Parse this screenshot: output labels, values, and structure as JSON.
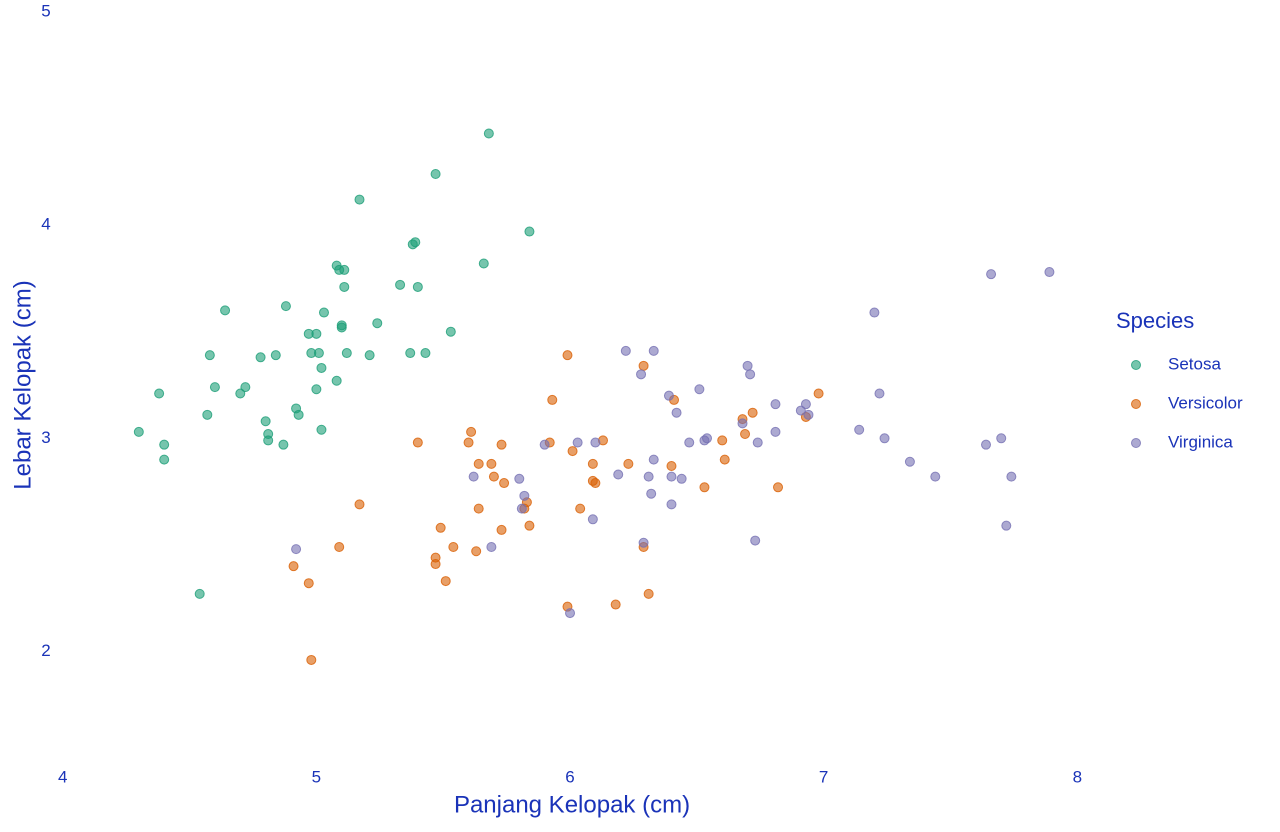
{
  "chart_data": {
    "type": "scatter",
    "x_label": "Panjang Kelopak (cm)",
    "y_label": "Lebar Kelopak (cm)",
    "legend_title": "Species",
    "legend_position": "right",
    "xlim": [
      3.8,
      8.05
    ],
    "xticks": [
      4,
      5,
      6,
      7,
      8
    ],
    "ylim": [
      1.5,
      5
    ],
    "yticks": [
      2,
      3,
      4,
      5
    ],
    "grid": false,
    "series": [
      {
        "name": "Setosa",
        "color": "#1b9e77",
        "x": [
          4.3,
          4.38,
          4.4,
          4.4,
          4.54,
          4.57,
          4.58,
          4.6,
          4.64,
          4.7,
          4.72,
          4.78,
          4.8,
          4.81,
          4.81,
          4.84,
          4.87,
          4.88,
          4.92,
          4.93,
          4.97,
          4.98,
          5.0,
          5.0,
          5.01,
          5.02,
          5.02,
          5.03,
          5.08,
          5.08,
          5.09,
          5.1,
          5.1,
          5.11,
          5.11,
          5.12,
          5.17,
          5.21,
          5.24,
          5.33,
          5.37,
          5.38,
          5.39,
          5.4,
          5.43,
          5.47,
          5.53,
          5.66,
          5.68,
          5.84
        ],
        "values": [
          3.03,
          3.21,
          2.97,
          2.9,
          2.27,
          3.11,
          3.39,
          3.24,
          3.6,
          3.21,
          3.24,
          3.38,
          3.08,
          3.02,
          2.99,
          3.39,
          2.97,
          3.62,
          3.14,
          3.11,
          3.49,
          3.4,
          3.49,
          3.23,
          3.4,
          3.33,
          3.04,
          3.59,
          3.27,
          3.81,
          3.79,
          3.52,
          3.53,
          3.71,
          3.79,
          3.4,
          4.12,
          3.39,
          3.54,
          3.72,
          3.4,
          3.91,
          3.92,
          3.71,
          3.4,
          4.24,
          3.5,
          3.82,
          4.43,
          3.97
        ]
      },
      {
        "name": "Versicolor",
        "color": "#d95f02",
        "x": [
          4.98,
          4.91,
          4.97,
          5.09,
          5.17,
          5.4,
          5.47,
          5.47,
          5.49,
          5.51,
          5.54,
          5.6,
          5.61,
          5.63,
          5.64,
          5.64,
          5.69,
          5.7,
          5.73,
          5.73,
          5.74,
          5.82,
          5.83,
          5.84,
          5.92,
          5.93,
          5.99,
          5.99,
          6.01,
          6.04,
          6.09,
          6.09,
          6.1,
          6.13,
          6.18,
          6.23,
          6.29,
          6.29,
          6.31,
          6.4,
          6.41,
          6.53,
          6.61,
          6.6,
          6.68,
          6.69,
          6.72,
          6.82,
          6.93,
          6.98
        ],
        "values": [
          1.96,
          2.4,
          2.32,
          2.49,
          2.69,
          2.98,
          2.41,
          2.44,
          2.58,
          2.33,
          2.49,
          2.98,
          3.03,
          2.47,
          2.88,
          2.67,
          2.88,
          2.82,
          2.97,
          2.57,
          2.79,
          2.67,
          2.7,
          2.59,
          2.98,
          3.18,
          3.39,
          2.21,
          2.94,
          2.67,
          2.88,
          2.8,
          2.79,
          2.99,
          2.22,
          2.88,
          3.34,
          2.49,
          2.27,
          2.87,
          3.18,
          2.77,
          2.9,
          2.99,
          3.09,
          3.02,
          3.12,
          2.77,
          3.1,
          3.21
        ]
      },
      {
        "name": "Virginica",
        "color": "#7570b3",
        "x": [
          4.92,
          5.62,
          5.69,
          5.8,
          5.81,
          5.82,
          5.9,
          6.0,
          6.03,
          6.09,
          6.1,
          6.19,
          6.22,
          6.28,
          6.29,
          6.31,
          6.32,
          6.33,
          6.33,
          6.39,
          6.4,
          6.4,
          6.42,
          6.44,
          6.47,
          6.51,
          6.53,
          6.54,
          6.68,
          6.7,
          6.71,
          6.73,
          6.74,
          6.81,
          6.81,
          6.91,
          6.93,
          6.94,
          7.14,
          7.2,
          7.22,
          7.24,
          7.34,
          7.44,
          7.64,
          7.66,
          7.7,
          7.72,
          7.74,
          7.89
        ],
        "values": [
          2.48,
          2.82,
          2.49,
          2.81,
          2.67,
          2.73,
          2.97,
          2.18,
          2.98,
          2.62,
          2.98,
          2.83,
          3.41,
          3.3,
          2.51,
          2.82,
          2.74,
          3.41,
          2.9,
          3.2,
          2.82,
          2.69,
          3.12,
          2.81,
          2.98,
          3.23,
          2.99,
          3.0,
          3.07,
          3.34,
          3.3,
          2.52,
          2.98,
          3.16,
          3.03,
          3.13,
          3.16,
          3.11,
          3.04,
          3.59,
          3.21,
          3.0,
          2.89,
          2.82,
          2.97,
          3.77,
          3.0,
          2.59,
          2.82,
          3.78
        ]
      }
    ]
  }
}
